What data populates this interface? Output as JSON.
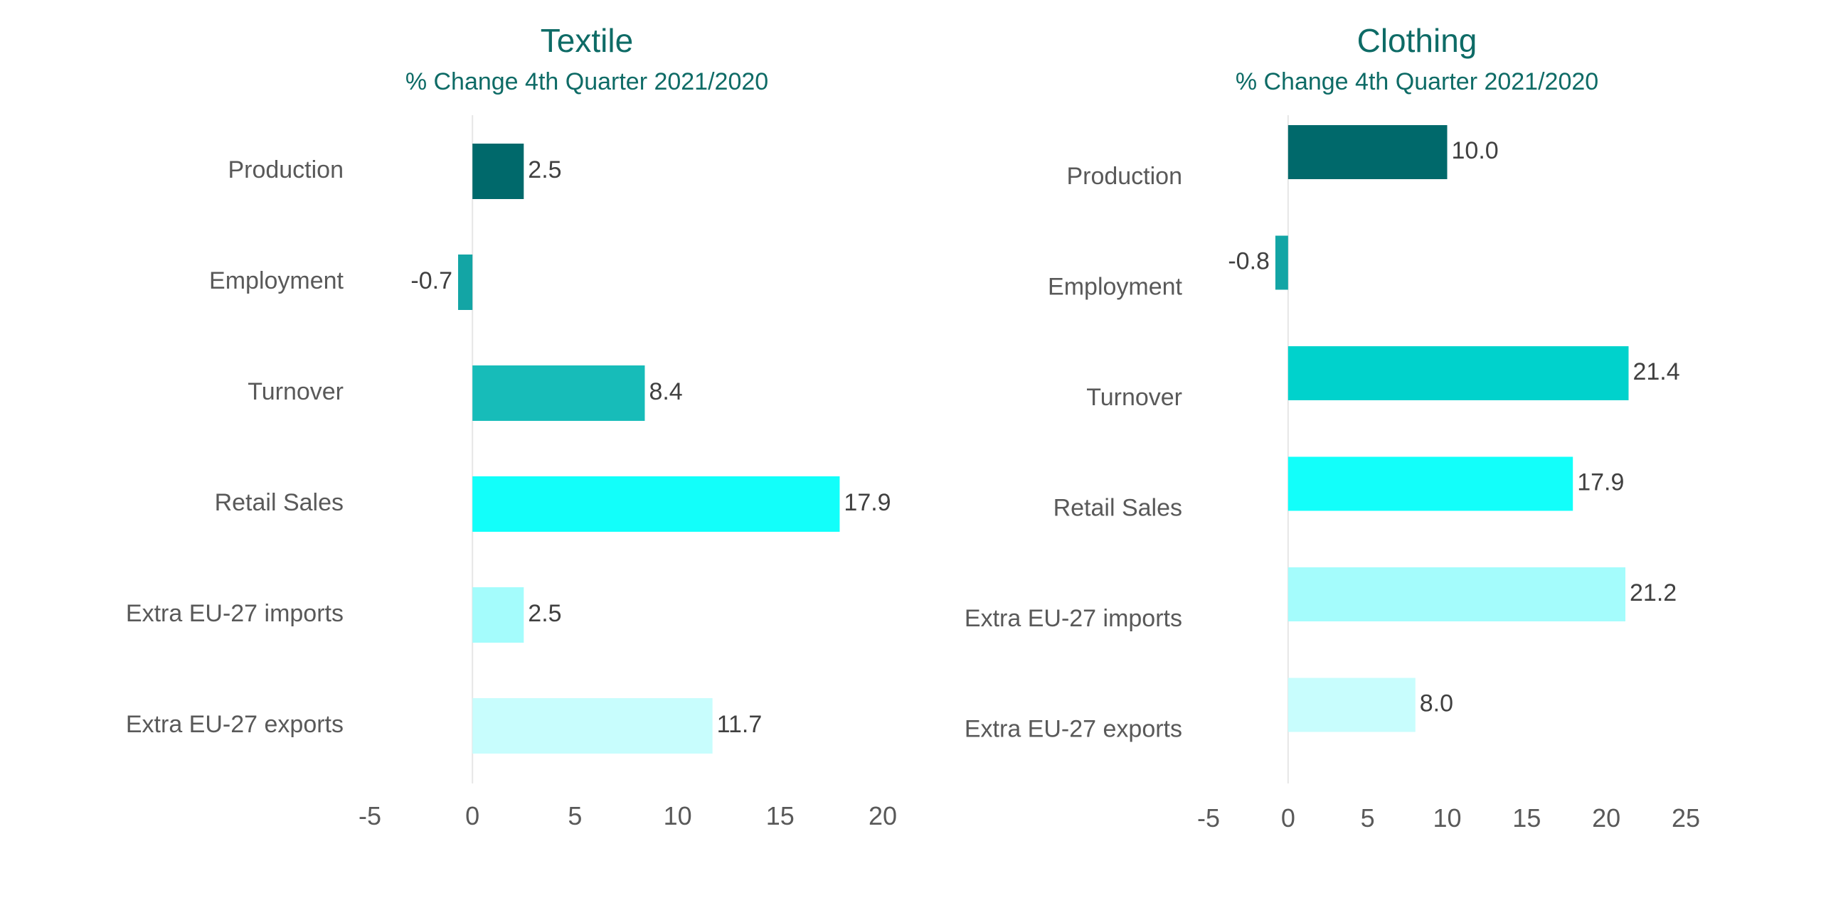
{
  "chart_data": [
    {
      "type": "bar",
      "orientation": "horizontal",
      "title": "Textile",
      "subtitle": "% Change 4th Quarter 2021/2020",
      "categories": [
        "Production",
        "Employment",
        "Turnover",
        "Retail Sales",
        "Extra EU-27 imports",
        "Extra EU-27 exports"
      ],
      "values": [
        2.5,
        -0.7,
        8.4,
        17.9,
        2.5,
        11.7
      ],
      "value_labels": [
        "2.5",
        "-0.7",
        "8.4",
        "17.9",
        "2.5",
        "11.7"
      ],
      "colors": [
        "#00696b",
        "#13a5a5",
        "#17bcb9",
        "#12fffa",
        "#a4fcfc",
        "#c8fdfd"
      ],
      "xlim": [
        -5,
        20
      ],
      "xticks": [
        -5,
        0,
        5,
        10,
        15,
        20
      ],
      "xlabel": "",
      "ylabel": "",
      "grid": false
    },
    {
      "type": "bar",
      "orientation": "horizontal",
      "title": "Clothing",
      "subtitle": "% Change 4th Quarter 2021/2020",
      "categories": [
        "Production",
        "Employment",
        "Turnover",
        "Retail Sales",
        "Extra EU-27 imports",
        "Extra EU-27 exports"
      ],
      "values": [
        10.0,
        -0.8,
        21.4,
        17.9,
        21.2,
        8.0
      ],
      "value_labels": [
        "10.0",
        "-0.8",
        "21.4",
        "17.9",
        "21.2",
        "8.0"
      ],
      "colors": [
        "#00696b",
        "#13a5a5",
        "#00d2cc",
        "#12fffa",
        "#a4fcfc",
        "#c8fdfd"
      ],
      "xlim": [
        -5,
        25
      ],
      "xticks": [
        -5,
        0,
        5,
        10,
        15,
        20,
        25
      ],
      "xlabel": "",
      "ylabel": "",
      "grid": false
    }
  ]
}
